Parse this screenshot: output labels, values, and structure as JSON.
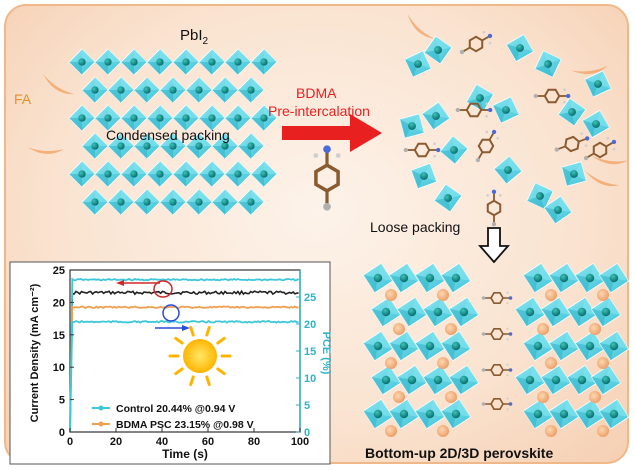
{
  "labels": {
    "pbi2": "PbI",
    "pbi2_sub": "2",
    "fa": "FA",
    "condensed": "Condensed packing",
    "bdma": "BDMA",
    "preintercalation": "Pre-intercalation",
    "loose": "Loose packing",
    "bottomup": "Bottom-up 2D/3D perovskite"
  },
  "colors": {
    "octahedron": "#5fd6e6",
    "octahedron_dark": "#2fb3c8",
    "center_atom": "#0e8a8a",
    "fa_ion": "#f0a060",
    "arrow": "#e82020",
    "control": "#3cc8d8",
    "bdma_psc": "#f0a050",
    "black_trace": "#222222"
  },
  "chart_data": {
    "type": "line",
    "xlabel": "Time (s)",
    "ylabel": "Current Density (mA cm⁻²)",
    "ylabel_right": "PCE (%)",
    "xlim": [
      0,
      100
    ],
    "ylim": [
      0,
      25
    ],
    "ylim_right": [
      0,
      30
    ],
    "x_ticks": [
      "0",
      "20",
      "40",
      "60",
      "80",
      "100"
    ],
    "y_ticks": [
      "0",
      "5",
      "10",
      "15",
      "20",
      "25"
    ],
    "y_ticks_right": [
      "0",
      "5",
      "10",
      "15",
      "20",
      "25"
    ],
    "series": [
      {
        "name": "Control 20.44% @0.94 V",
        "axis": "left",
        "value": 21.5,
        "color": "#222222"
      },
      {
        "name": "BDMA PSC  23.15% @0.98 V",
        "axis": "left",
        "value": 23.5,
        "color": "#3cc8d8"
      },
      {
        "axis": "right",
        "value": 23.1,
        "color": "#f0a050"
      },
      {
        "axis": "right",
        "value": 20.4,
        "color": "#3cc8d8"
      }
    ]
  }
}
